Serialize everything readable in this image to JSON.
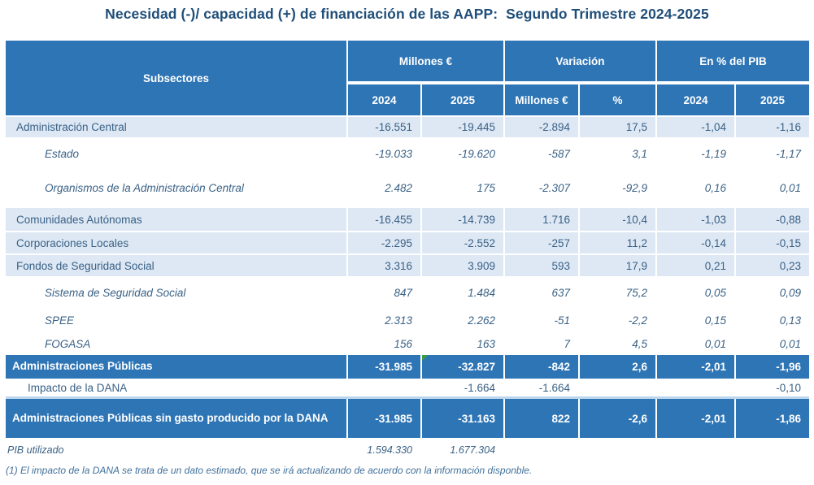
{
  "title": "Necesidad (-)/ capacidad (+) de financiación de las AAPP:  Segundo Trimestre 2024-2025",
  "colors": {
    "header_blue": "#2E75B6",
    "band_light_blue": "#DDE8F4",
    "text_blue": "#3A6186",
    "title_navy": "#1F4E79",
    "footnote_blue": "#41719C",
    "flag_green": "#3A9E3E"
  },
  "table": {
    "header": {
      "subsectores": "Subsectores",
      "groups": [
        {
          "label": "Millones €",
          "cols": [
            "2024",
            "2025"
          ]
        },
        {
          "label": "Variación",
          "cols": [
            "Millones €",
            "%"
          ]
        },
        {
          "label": "En % del PIB",
          "cols": [
            "2024",
            "2025"
          ]
        }
      ]
    },
    "rows": [
      {
        "label": "Administración Central",
        "style": "band",
        "values": [
          "-16.551",
          "-19.445",
          "-2.894",
          "17,5",
          "-1,04",
          "-1,16"
        ]
      },
      {
        "label": "Estado",
        "style": "sub",
        "values": [
          "-19.033",
          "-19.620",
          "-587",
          "3,1",
          "-1,19",
          "-1,17"
        ]
      },
      {
        "label": "Organismos de la Administración Central",
        "style": "sub",
        "values": [
          "2.482",
          "175",
          "-2.307",
          "-92,9",
          "0,16",
          "0,01"
        ]
      },
      {
        "label": "Comunidades Autónomas",
        "style": "band",
        "values": [
          "-16.455",
          "-14.739",
          "1.716",
          "-10,4",
          "-1,03",
          "-0,88"
        ]
      },
      {
        "label": "Corporaciones Locales",
        "style": "band",
        "values": [
          "-2.295",
          "-2.552",
          "-257",
          "11,2",
          "-0,14",
          "-0,15"
        ]
      },
      {
        "label": "Fondos de Seguridad Social",
        "style": "band",
        "values": [
          "3.316",
          "3.909",
          "593",
          "17,9",
          "0,21",
          "0,23"
        ]
      },
      {
        "label": "Sistema de Seguridad Social",
        "style": "sub",
        "values": [
          "847",
          "1.484",
          "637",
          "75,2",
          "0,05",
          "0,09"
        ]
      },
      {
        "label": "SPEE",
        "style": "sub",
        "values": [
          "2.313",
          "2.262",
          "-51",
          "-2,2",
          "0,15",
          "0,13"
        ]
      },
      {
        "label": "FOGASA",
        "style": "sub",
        "values": [
          "156",
          "163",
          "7",
          "4,5",
          "0,01",
          "0,01"
        ]
      },
      {
        "label": "Administraciones Públicas",
        "style": "total",
        "flag_col": 1,
        "values": [
          "-31.985",
          "-32.827",
          "-842",
          "2,6",
          "-2,01",
          "-1,96"
        ]
      },
      {
        "label": "Impacto de la DANA",
        "style": "plain",
        "values": [
          "",
          "-1.664",
          "-1.664",
          "",
          "",
          "-0,10"
        ]
      },
      {
        "label": "Administraciones Públicas sin gasto producido por la DANA",
        "style": "total",
        "values": [
          "-31.985",
          "-31.163",
          "822",
          "-2,6",
          "-2,01",
          "-1,86"
        ]
      },
      {
        "label": "PIB utilizado",
        "style": "pib",
        "values": [
          "1.594.330",
          "1.677.304",
          "",
          "",
          "",
          ""
        ]
      }
    ]
  },
  "footnote": "(1) El impacto de la DANA se trata de un dato estimado, que se irá actualizando de acuerdo con la información disponble."
}
